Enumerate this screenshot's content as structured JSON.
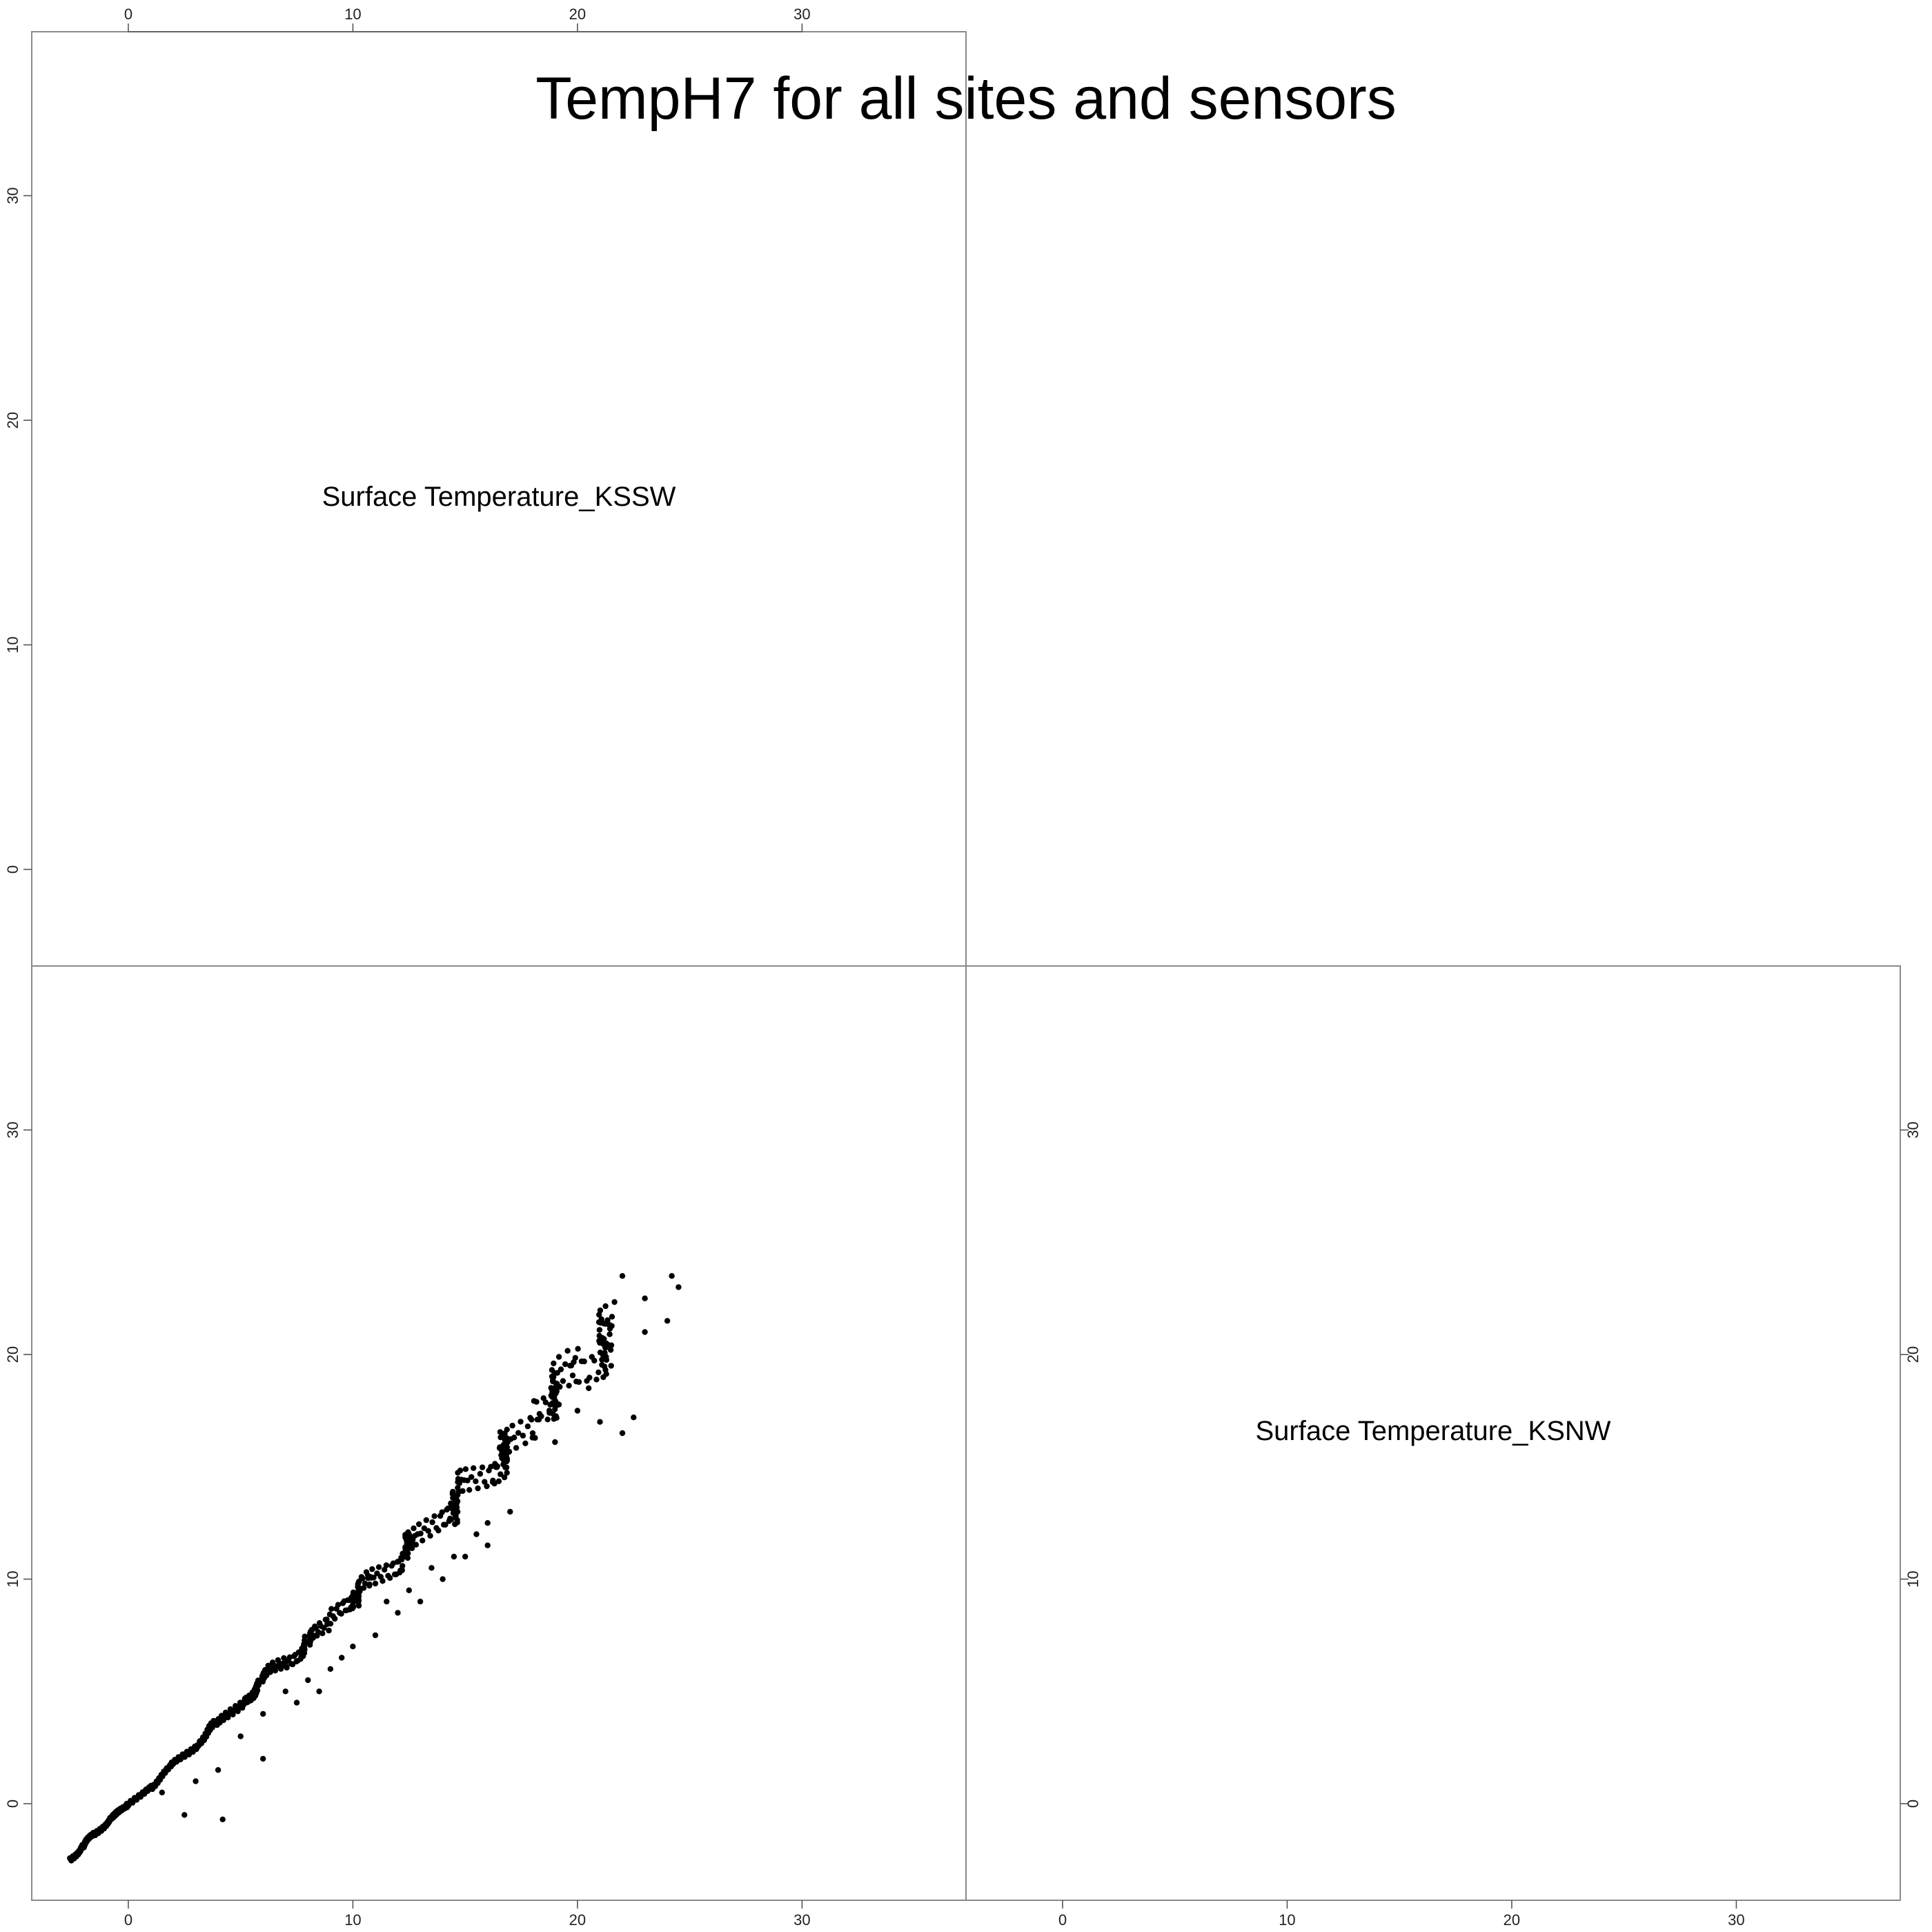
{
  "chart_data": {
    "type": "scatter",
    "title": "TempH7 for all sites and sensors",
    "layout": "scatterplot-matrix",
    "variables": [
      "Surface Temperature_KSSW",
      "Surface Temperature_KSNW"
    ],
    "axis_range": [
      -4.3,
      37.3
    ],
    "ticks": [
      0,
      10,
      20,
      30
    ],
    "grid": false,
    "panels": [
      {
        "position": "top-left",
        "kind": "label",
        "text": "Surface Temperature_KSSW"
      },
      {
        "position": "top-right",
        "kind": "empty"
      },
      {
        "position": "bottom-left",
        "kind": "scatter",
        "xlabel": "Surface Temperature_KSSW",
        "ylabel": "Surface Temperature_KSNW",
        "point_color": "#000000",
        "trend_points": [
          [
            -2.6,
            -2.5
          ],
          [
            -2.0,
            -1.8
          ],
          [
            -1.5,
            -1.3
          ],
          [
            -0.8,
            -0.6
          ],
          [
            0.0,
            0.0
          ],
          [
            1.0,
            0.8
          ],
          [
            2.0,
            1.8
          ],
          [
            3.0,
            2.7
          ],
          [
            4.0,
            3.7
          ],
          [
            5.0,
            4.6
          ],
          [
            6.0,
            5.6
          ],
          [
            7.0,
            6.5
          ],
          [
            8.0,
            7.4
          ],
          [
            9.0,
            8.4
          ],
          [
            10.0,
            9.4
          ],
          [
            11.0,
            10.3
          ],
          [
            12.0,
            11.3
          ],
          [
            13.0,
            12.2
          ],
          [
            14.0,
            13.2
          ],
          [
            15.0,
            14.2
          ],
          [
            16.0,
            15.2
          ],
          [
            17.0,
            16.3
          ],
          [
            18.0,
            17.5
          ],
          [
            19.0,
            18.7
          ],
          [
            20.0,
            19.8
          ],
          [
            21.0,
            20.8
          ],
          [
            22.0,
            22.5
          ]
        ],
        "outlier_points": [
          [
            3,
            1
          ],
          [
            4,
            1.5
          ],
          [
            5,
            3
          ],
          [
            6,
            4
          ],
          [
            7,
            5
          ],
          [
            8,
            5.5
          ],
          [
            9,
            6
          ],
          [
            10,
            7
          ],
          [
            11,
            7.5
          ],
          [
            12,
            8.5
          ],
          [
            13,
            9
          ],
          [
            14,
            10
          ],
          [
            15,
            11
          ],
          [
            16,
            11.5
          ],
          [
            17,
            13
          ],
          [
            18,
            16.3
          ],
          [
            19,
            16.1
          ],
          [
            20.5,
            18.5
          ],
          [
            21,
            17
          ],
          [
            22,
            16.5
          ],
          [
            22.5,
            17.2
          ],
          [
            22,
            23.5
          ],
          [
            23,
            22.5
          ],
          [
            24.2,
            23.5
          ],
          [
            24.5,
            23
          ],
          [
            24,
            21.5
          ],
          [
            1.5,
            0.5
          ],
          [
            2.5,
            -0.5
          ],
          [
            4.2,
            -0.7
          ],
          [
            6,
            2
          ],
          [
            20,
            17.5
          ],
          [
            21.5,
            19.5
          ],
          [
            23,
            21
          ],
          [
            11.5,
            9
          ],
          [
            14.5,
            11
          ],
          [
            16,
            12.5
          ],
          [
            13.5,
            10.5
          ],
          [
            9.5,
            6.5
          ],
          [
            8.5,
            5
          ],
          [
            7.5,
            4.5
          ],
          [
            12.5,
            9.5
          ],
          [
            15.5,
            12
          ]
        ]
      },
      {
        "position": "bottom-right",
        "kind": "label",
        "text": "Surface Temperature_KSNW"
      }
    ]
  }
}
